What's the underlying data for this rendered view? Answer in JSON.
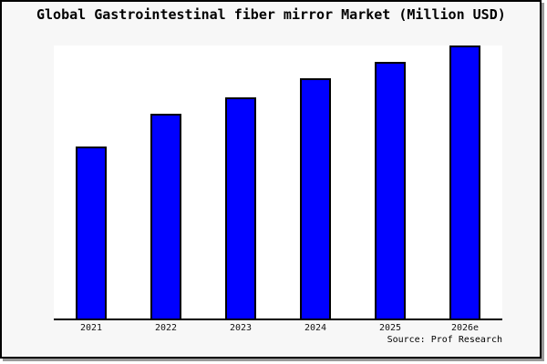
{
  "chart_data": {
    "type": "bar",
    "title": "Global Gastrointestinal fiber mirror Market (Million USD)",
    "categories": [
      "2021",
      "2022",
      "2023",
      "2024",
      "2025",
      "2026e"
    ],
    "values": [
      63,
      75,
      81,
      88,
      94,
      100
    ],
    "ylim": [
      0,
      100
    ],
    "xlabel": "",
    "ylabel": "",
    "grid": false,
    "legend": false,
    "y_axis_labels_visible": false,
    "bar_color": "#0000ff",
    "bar_border_color": "#000000",
    "source": "Source: Prof Research"
  },
  "colors": {
    "card_background": "#f7f7f7",
    "plot_background": "#ffffff",
    "border": "#000000",
    "shadow": "#999999"
  }
}
